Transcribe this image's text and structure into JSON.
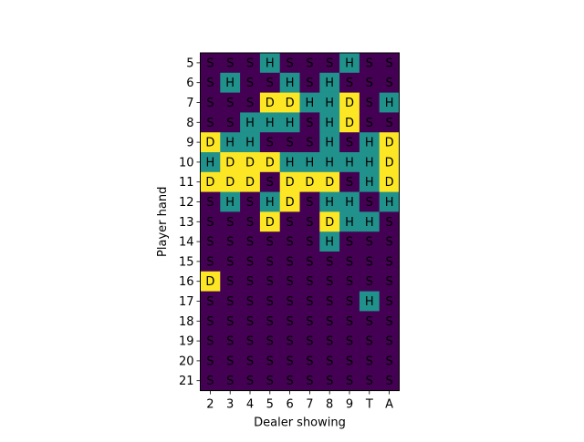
{
  "chart_data": {
    "type": "heatmap",
    "title": "",
    "xlabel": "Dealer showing",
    "ylabel": "Player hand",
    "x_categories": [
      "2",
      "3",
      "4",
      "5",
      "6",
      "7",
      "8",
      "9",
      "T",
      "A"
    ],
    "y_categories": [
      "5",
      "6",
      "7",
      "8",
      "9",
      "10",
      "11",
      "12",
      "13",
      "14",
      "15",
      "16",
      "17",
      "18",
      "19",
      "20",
      "21"
    ],
    "cells": [
      [
        "S",
        "S",
        "S",
        "H",
        "S",
        "S",
        "S",
        "H",
        "S",
        "S"
      ],
      [
        "S",
        "H",
        "S",
        "S",
        "H",
        "S",
        "H",
        "S",
        "S",
        "S"
      ],
      [
        "S",
        "S",
        "S",
        "D",
        "D",
        "H",
        "H",
        "D",
        "S",
        "H"
      ],
      [
        "S",
        "S",
        "H",
        "H",
        "H",
        "S",
        "H",
        "D",
        "S",
        "S"
      ],
      [
        "D",
        "H",
        "H",
        "S",
        "S",
        "S",
        "H",
        "S",
        "H",
        "D"
      ],
      [
        "H",
        "D",
        "D",
        "D",
        "H",
        "H",
        "H",
        "H",
        "H",
        "D"
      ],
      [
        "D",
        "D",
        "D",
        "S",
        "D",
        "D",
        "D",
        "S",
        "H",
        "D"
      ],
      [
        "S",
        "H",
        "S",
        "H",
        "D",
        "S",
        "H",
        "H",
        "S",
        "H"
      ],
      [
        "S",
        "S",
        "S",
        "D",
        "S",
        "S",
        "D",
        "H",
        "H",
        "S"
      ],
      [
        "S",
        "S",
        "S",
        "S",
        "S",
        "S",
        "H",
        "S",
        "S",
        "S"
      ],
      [
        "S",
        "S",
        "S",
        "S",
        "S",
        "S",
        "S",
        "S",
        "S",
        "S"
      ],
      [
        "D",
        "S",
        "S",
        "S",
        "S",
        "S",
        "S",
        "S",
        "S",
        "S"
      ],
      [
        "S",
        "S",
        "S",
        "S",
        "S",
        "S",
        "S",
        "S",
        "H",
        "S"
      ],
      [
        "S",
        "S",
        "S",
        "S",
        "S",
        "S",
        "S",
        "S",
        "S",
        "S"
      ],
      [
        "S",
        "S",
        "S",
        "S",
        "S",
        "S",
        "S",
        "S",
        "S",
        "S"
      ],
      [
        "S",
        "S",
        "S",
        "S",
        "S",
        "S",
        "S",
        "S",
        "S",
        "S"
      ],
      [
        "S",
        "S",
        "S",
        "S",
        "S",
        "S",
        "S",
        "S",
        "S",
        "S"
      ]
    ],
    "colors": {
      "S": "#440154",
      "H": "#21918c",
      "D": "#fde725"
    },
    "text_color": "#000000",
    "grid": false,
    "legend": "none"
  }
}
